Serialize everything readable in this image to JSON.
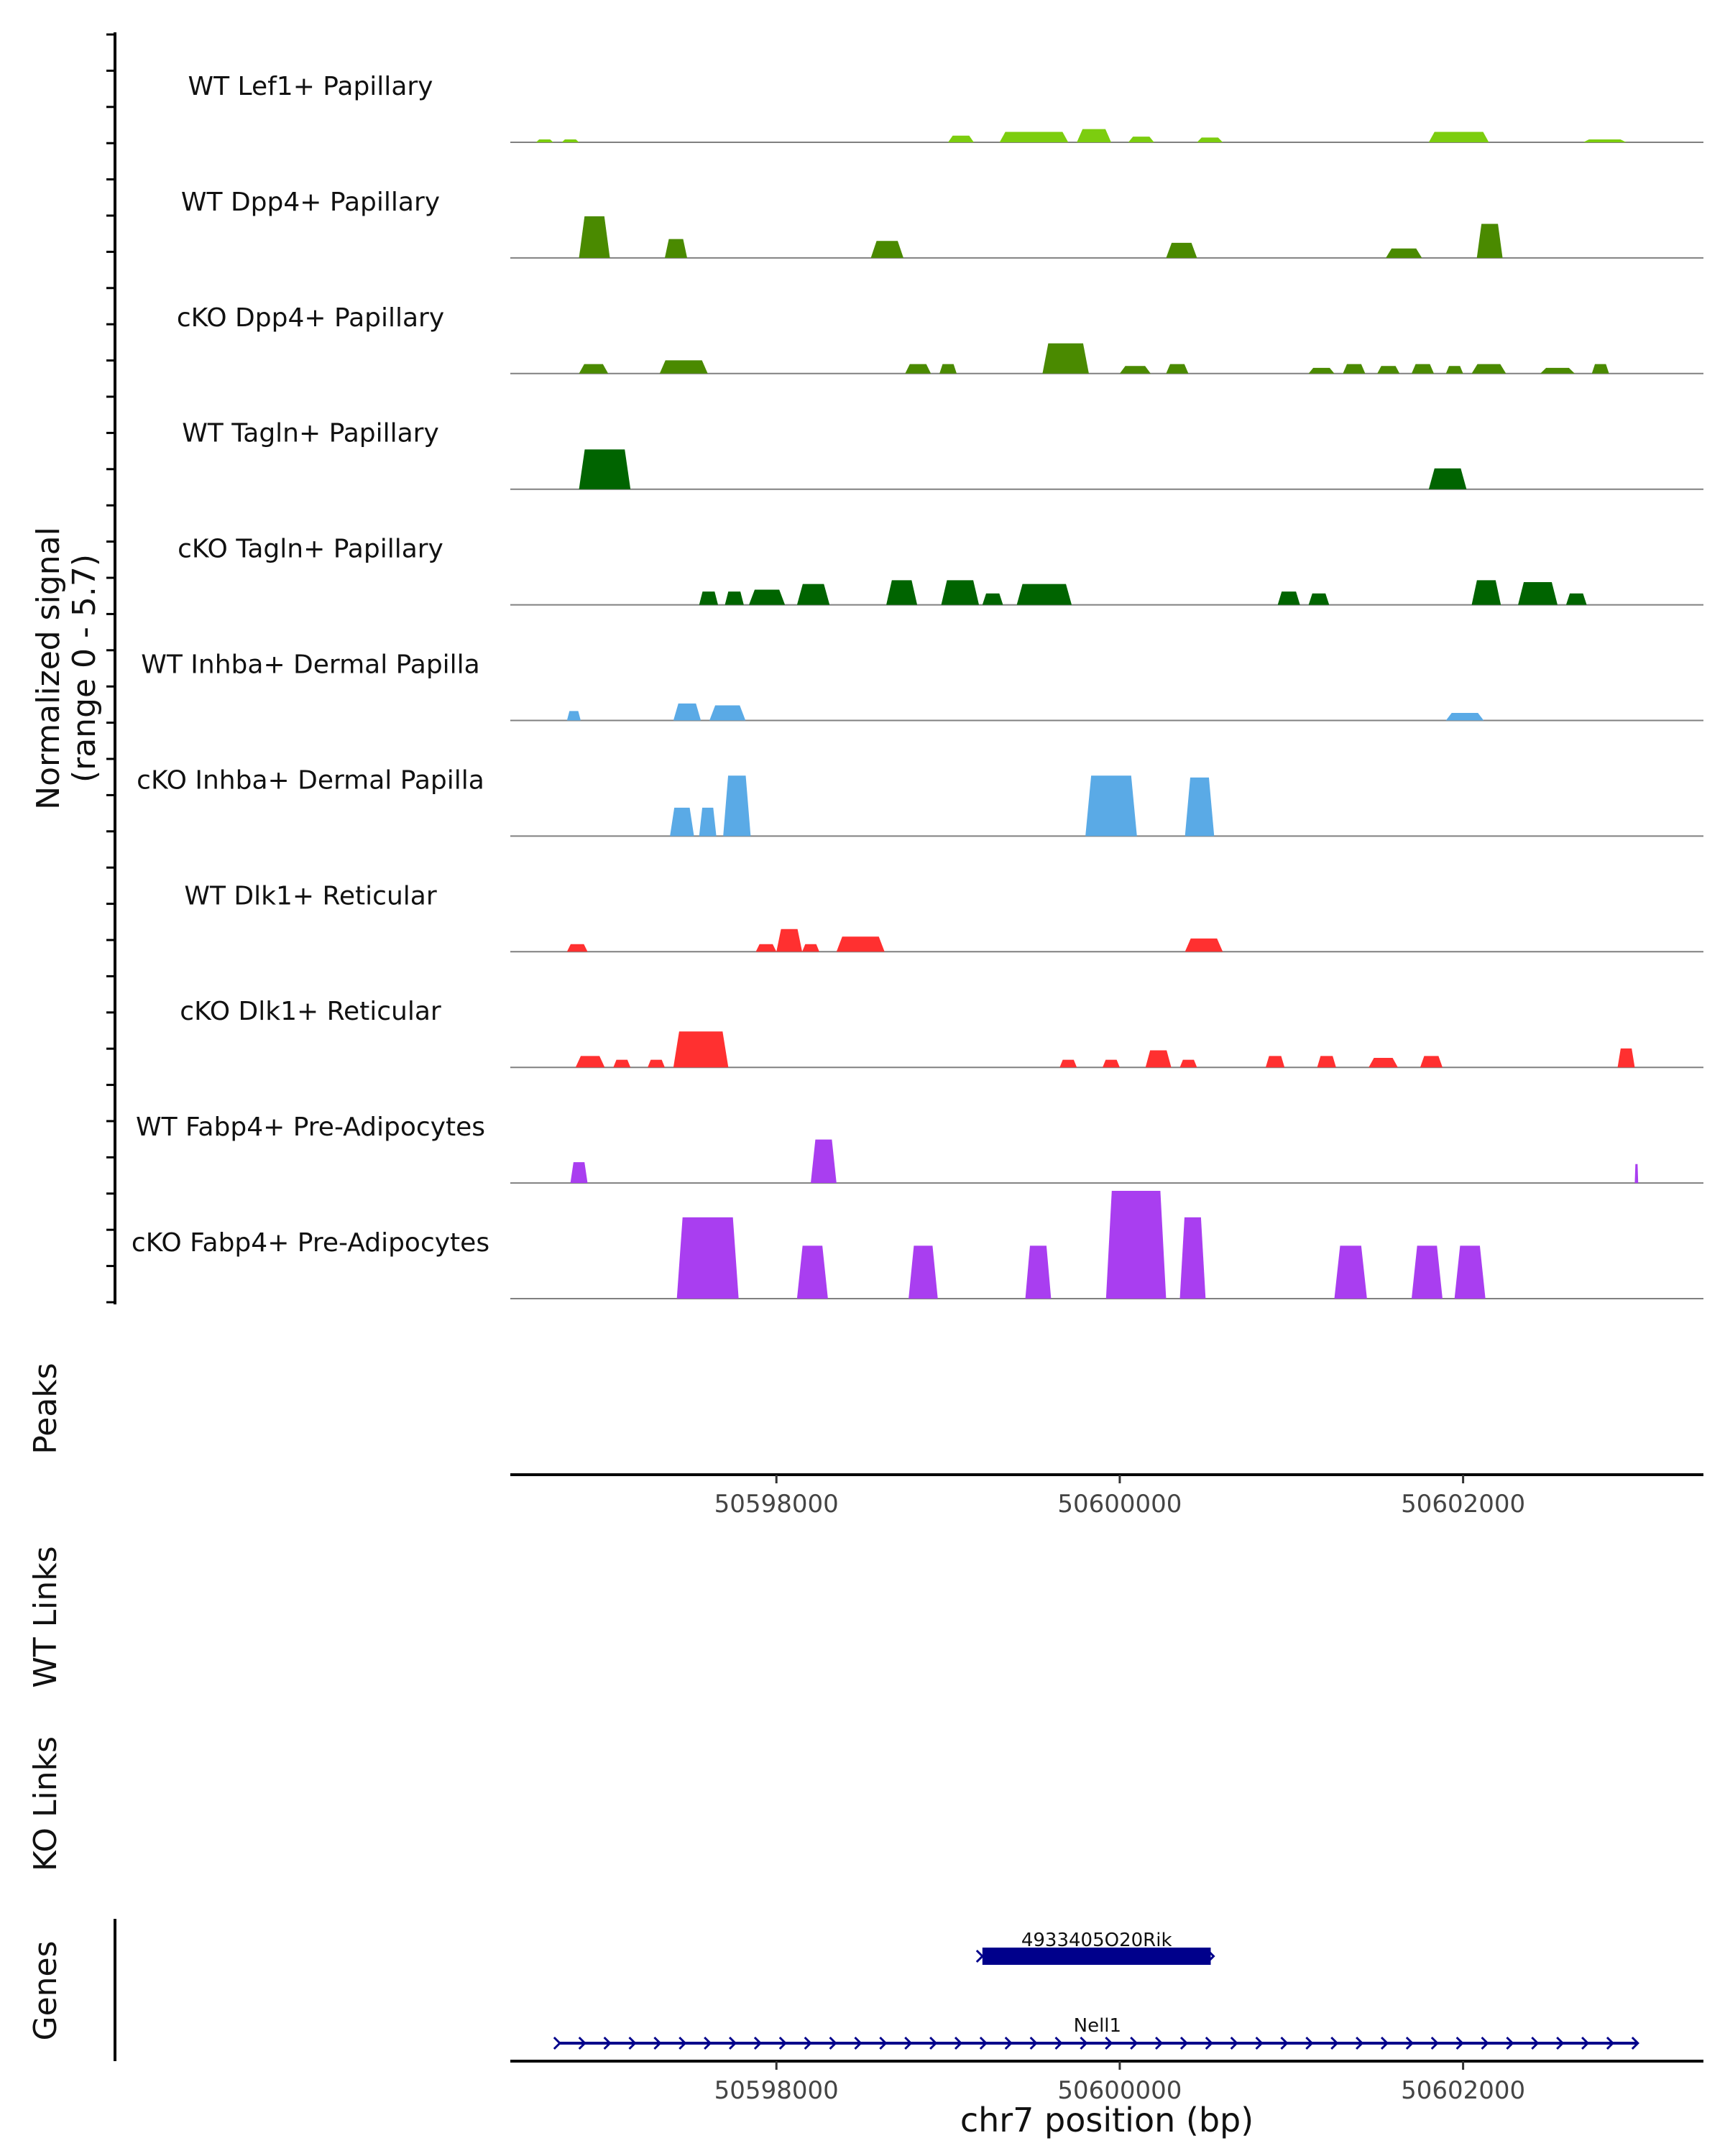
{
  "chart_data": {
    "type": "area",
    "chromosome": "chr7",
    "x_axis_label": "chr7 position (bp)",
    "xlim": [
      50596450,
      50603400
    ],
    "x_ticks": [
      50598000,
      50600000,
      50602000
    ],
    "x_tick_labels": [
      "50598000",
      "50600000",
      "50602000"
    ],
    "y_axis_label_line1": "Normalized signal",
    "y_axis_label_line2": "(range 0 - 5.7)",
    "y_range": [
      0,
      5.7
    ],
    "colors": {
      "light_green": "#7ccd0f",
      "green": "#4a8a00",
      "dark_green": "#006400",
      "blue": "#5aaae6",
      "red": "#ff3030",
      "purple": "#a93ef0",
      "gene_navy": "#00008b",
      "baseline": "#808080",
      "axis": "#000000"
    },
    "tracks": [
      {
        "name": "WT Lef1+ Papillary",
        "color": "#7ccd0f",
        "peaks": [
          [
            50596600,
            50596700,
            0.15
          ],
          [
            50596750,
            50596850,
            0.15
          ],
          [
            50599000,
            50599150,
            0.35
          ],
          [
            50599300,
            50599700,
            0.55
          ],
          [
            50599750,
            50599950,
            0.7
          ],
          [
            50600050,
            50600200,
            0.3
          ],
          [
            50600450,
            50600600,
            0.25
          ],
          [
            50601800,
            50602150,
            0.55
          ],
          [
            50602700,
            50602950,
            0.15
          ]
        ]
      },
      {
        "name": "WT Dpp4+ Papillary",
        "color": "#4a8a00",
        "peaks": [
          [
            50596850,
            50597030,
            2.2
          ],
          [
            50597350,
            50597480,
            1.0
          ],
          [
            50598550,
            50598740,
            0.9
          ],
          [
            50600270,
            50600450,
            0.8
          ],
          [
            50601550,
            50601760,
            0.5
          ],
          [
            50602080,
            50602230,
            1.8
          ]
        ]
      },
      {
        "name": "cKO Dpp4+ Papillary",
        "color": "#4a8a00",
        "peaks": [
          [
            50596850,
            50597020,
            0.5
          ],
          [
            50597320,
            50597600,
            0.7
          ],
          [
            50598750,
            50598900,
            0.5
          ],
          [
            50598950,
            50599050,
            0.5
          ],
          [
            50599550,
            50599820,
            1.6
          ],
          [
            50600000,
            50600180,
            0.4
          ],
          [
            50600270,
            50600400,
            0.5
          ],
          [
            50601100,
            50601250,
            0.3
          ],
          [
            50601300,
            50601430,
            0.5
          ],
          [
            50601500,
            50601630,
            0.4
          ],
          [
            50601700,
            50601830,
            0.5
          ],
          [
            50601900,
            50602000,
            0.4
          ],
          [
            50602050,
            50602250,
            0.5
          ],
          [
            50602450,
            50602650,
            0.3
          ],
          [
            50602750,
            50602850,
            0.5
          ]
        ]
      },
      {
        "name": "WT Tagln+ Papillary",
        "color": "#006400",
        "peaks": [
          [
            50596850,
            50597150,
            2.1
          ],
          [
            50601800,
            50602020,
            1.1
          ]
        ]
      },
      {
        "name": "cKO Tagln+ Papillary",
        "color": "#006400",
        "peaks": [
          [
            50597550,
            50597660,
            0.7
          ],
          [
            50597700,
            50597810,
            0.7
          ],
          [
            50597840,
            50598050,
            0.8
          ],
          [
            50598120,
            50598310,
            1.1
          ],
          [
            50598640,
            50598820,
            1.3
          ],
          [
            50598960,
            50599180,
            1.3
          ],
          [
            50599200,
            50599320,
            0.6
          ],
          [
            50599400,
            50599720,
            1.1
          ],
          [
            50600920,
            50601050,
            0.7
          ],
          [
            50601100,
            50601220,
            0.6
          ],
          [
            50602050,
            50602220,
            1.3
          ],
          [
            50602320,
            50602550,
            1.2
          ],
          [
            50602600,
            50602720,
            0.6
          ]
        ]
      },
      {
        "name": "WT Inhba+ Dermal Papilla",
        "color": "#5aaae6",
        "peaks": [
          [
            50596780,
            50596860,
            0.5
          ],
          [
            50597400,
            50597560,
            0.9
          ],
          [
            50597610,
            50597820,
            0.8
          ],
          [
            50601900,
            50602120,
            0.4
          ]
        ]
      },
      {
        "name": "cKO Inhba+ Dermal Papilla",
        "color": "#5aaae6",
        "peaks": [
          [
            50597380,
            50597520,
            1.5
          ],
          [
            50597550,
            50597650,
            1.5
          ],
          [
            50597690,
            50597850,
            3.2
          ],
          [
            50599800,
            50600100,
            3.2
          ],
          [
            50600380,
            50600550,
            3.1
          ]
        ]
      },
      {
        "name": "WT Dlk1+ Reticular",
        "color": "#ff3030",
        "peaks": [
          [
            50596780,
            50596900,
            0.4
          ],
          [
            50597880,
            50598000,
            0.4
          ],
          [
            50598000,
            50598150,
            1.2
          ],
          [
            50598150,
            50598250,
            0.4
          ],
          [
            50598350,
            50598630,
            0.8
          ],
          [
            50600380,
            50600600,
            0.7
          ]
        ]
      },
      {
        "name": "cKO Dlk1+ Reticular",
        "color": "#ff3030",
        "peaks": [
          [
            50596830,
            50597000,
            0.6
          ],
          [
            50597050,
            50597150,
            0.4
          ],
          [
            50597250,
            50597350,
            0.4
          ],
          [
            50597400,
            50597720,
            1.9
          ],
          [
            50599650,
            50599750,
            0.4
          ],
          [
            50599900,
            50600000,
            0.4
          ],
          [
            50600150,
            50600300,
            0.9
          ],
          [
            50600350,
            50600450,
            0.4
          ],
          [
            50600850,
            50600960,
            0.6
          ],
          [
            50601150,
            50601260,
            0.6
          ],
          [
            50601450,
            50601620,
            0.5
          ],
          [
            50601750,
            50601880,
            0.6
          ],
          [
            50602900,
            50603000,
            1.0
          ]
        ]
      },
      {
        "name": "WT Fabp4+ Pre-Adipocytes",
        "color": "#a93ef0",
        "peaks": [
          [
            50596800,
            50596900,
            1.1
          ],
          [
            50598200,
            50598350,
            2.3
          ],
          [
            50603000,
            50603020,
            1.0
          ]
        ]
      },
      {
        "name": "cKO Fabp4+ Pre-Adipocytes",
        "color": "#a93ef0",
        "peaks": [
          [
            50597420,
            50597780,
            4.3
          ],
          [
            50598120,
            50598300,
            2.8
          ],
          [
            50598770,
            50598940,
            2.8
          ],
          [
            50599450,
            50599600,
            2.8
          ],
          [
            50599920,
            50600270,
            5.7
          ],
          [
            50600350,
            50600500,
            4.3
          ],
          [
            50601250,
            50601440,
            2.8
          ],
          [
            50601700,
            50601880,
            2.8
          ],
          [
            50601950,
            50602130,
            2.8
          ]
        ]
      }
    ],
    "peaks_label": "Peaks",
    "wt_links_label": "WT Links",
    "ko_links_label": "KO Links",
    "genes_label": "Genes",
    "genes": [
      {
        "name": "4933405O20Rik",
        "start": 50599200,
        "end": 50600530,
        "strand": "+",
        "style": "exon"
      },
      {
        "name": "Nell1",
        "start": 50596730,
        "end": 50603010,
        "strand": "+",
        "style": "intron"
      }
    ]
  }
}
